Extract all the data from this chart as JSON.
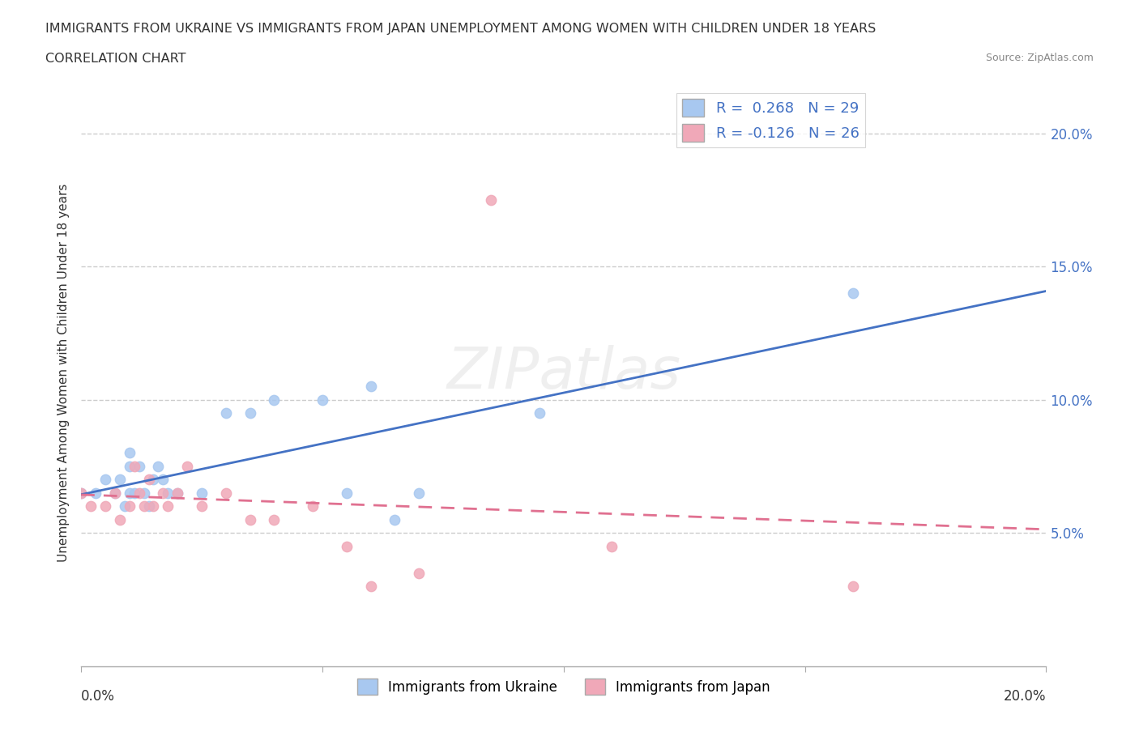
{
  "title_line1": "IMMIGRANTS FROM UKRAINE VS IMMIGRANTS FROM JAPAN UNEMPLOYMENT AMONG WOMEN WITH CHILDREN UNDER 18 YEARS",
  "title_line2": "CORRELATION CHART",
  "source": "Source: ZipAtlas.com",
  "ylabel": "Unemployment Among Women with Children Under 18 years",
  "xlim": [
    0.0,
    0.2
  ],
  "ylim": [
    0.0,
    0.22
  ],
  "yticks": [
    0.05,
    0.1,
    0.15,
    0.2
  ],
  "ytick_labels": [
    "5.0%",
    "10.0%",
    "15.0%",
    "20.0%"
  ],
  "legend_ukraine_R": "R =  0.268",
  "legend_ukraine_N": "N = 29",
  "legend_japan_R": "R = -0.126",
  "legend_japan_N": "N = 26",
  "ukraine_color": "#a8c8f0",
  "japan_color": "#f0a8b8",
  "ukraine_line_color": "#4472c4",
  "japan_line_color": "#e07090",
  "watermark": "ZIPatlas",
  "ukraine_scatter_x": [
    0.0,
    0.003,
    0.005,
    0.007,
    0.008,
    0.009,
    0.01,
    0.01,
    0.01,
    0.011,
    0.012,
    0.013,
    0.014,
    0.015,
    0.016,
    0.017,
    0.018,
    0.02,
    0.025,
    0.03,
    0.035,
    0.04,
    0.05,
    0.055,
    0.06,
    0.065,
    0.07,
    0.095,
    0.16
  ],
  "ukraine_scatter_y": [
    0.065,
    0.065,
    0.07,
    0.065,
    0.07,
    0.06,
    0.065,
    0.075,
    0.08,
    0.065,
    0.075,
    0.065,
    0.06,
    0.07,
    0.075,
    0.07,
    0.065,
    0.065,
    0.065,
    0.095,
    0.095,
    0.1,
    0.1,
    0.065,
    0.105,
    0.055,
    0.065,
    0.095,
    0.14
  ],
  "japan_scatter_x": [
    0.0,
    0.002,
    0.005,
    0.007,
    0.008,
    0.01,
    0.011,
    0.012,
    0.013,
    0.014,
    0.015,
    0.017,
    0.018,
    0.02,
    0.022,
    0.025,
    0.03,
    0.035,
    0.04,
    0.048,
    0.055,
    0.06,
    0.07,
    0.085,
    0.11,
    0.16
  ],
  "japan_scatter_y": [
    0.065,
    0.06,
    0.06,
    0.065,
    0.055,
    0.06,
    0.075,
    0.065,
    0.06,
    0.07,
    0.06,
    0.065,
    0.06,
    0.065,
    0.075,
    0.06,
    0.065,
    0.055,
    0.055,
    0.06,
    0.045,
    0.03,
    0.035,
    0.175,
    0.045,
    0.03
  ],
  "background_color": "#ffffff",
  "grid_color": "#cccccc"
}
